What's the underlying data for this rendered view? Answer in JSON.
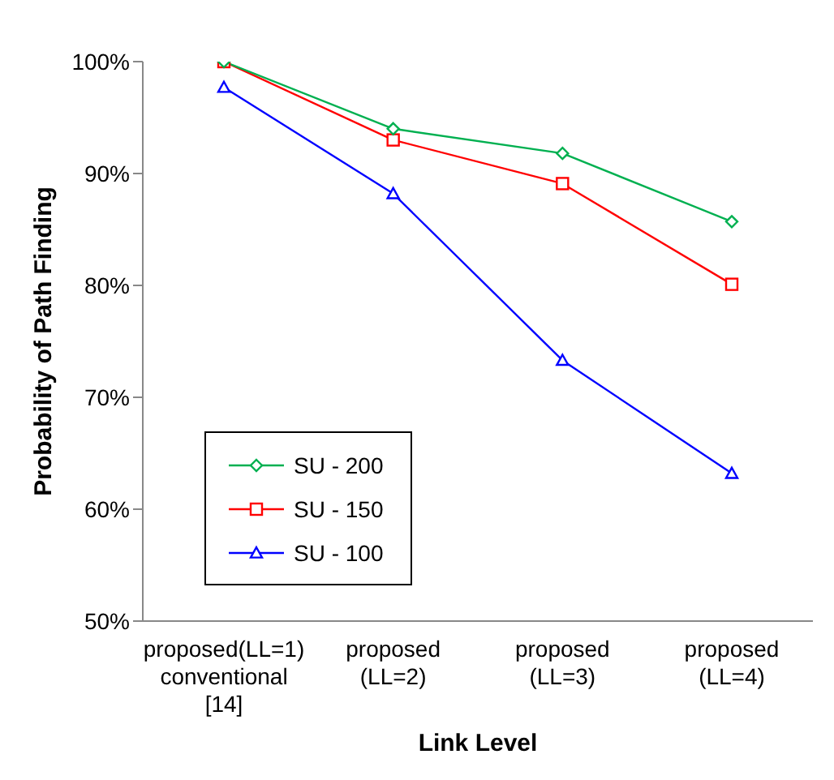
{
  "chart_data": {
    "type": "line",
    "xlabel": "Link Level",
    "ylabel": "Probability of Path Finding",
    "categories": [
      "proposed(LL=1)\nconventional\n[14]",
      "proposed\n(LL=2)",
      "proposed\n(LL=3)",
      "proposed\n(LL=4)"
    ],
    "series": [
      {
        "name": "SU - 200",
        "color": "#00b050",
        "marker": "diamond",
        "values": [
          100,
          94.0,
          91.8,
          85.7
        ]
      },
      {
        "name": "SU - 150",
        "color": "#ff0000",
        "marker": "square",
        "values": [
          100,
          93.0,
          89.1,
          80.1
        ]
      },
      {
        "name": "SU - 100",
        "color": "#0000ff",
        "marker": "triangle",
        "values": [
          97.7,
          88.2,
          73.3,
          63.2
        ]
      }
    ],
    "ylim": [
      50,
      100
    ],
    "yticks": [
      {
        "value": 50,
        "label": "50%"
      },
      {
        "value": 60,
        "label": "60%"
      },
      {
        "value": 70,
        "label": "70%"
      },
      {
        "value": 80,
        "label": "80%"
      },
      {
        "value": 90,
        "label": "90%"
      },
      {
        "value": 100,
        "label": "100%"
      }
    ],
    "grid": false,
    "legend": "bottom left",
    "line_style": "solid"
  }
}
